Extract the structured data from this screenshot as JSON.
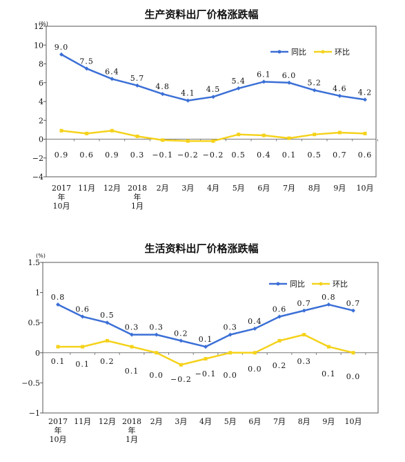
{
  "colors": {
    "yoy": "#3b6fd6",
    "mom": "#f5d21a",
    "axis": "#777777",
    "frame": "#555555"
  },
  "chart_data": [
    {
      "type": "line",
      "title": "生产资料出厂价格涨跌幅",
      "unit": "(%)",
      "categories": [
        [
          "2017",
          "年",
          "10月"
        ],
        [
          "11月"
        ],
        [
          "12月"
        ],
        [
          "2018",
          "年",
          "1月"
        ],
        [
          "2月"
        ],
        [
          "3月"
        ],
        [
          "4月"
        ],
        [
          "5月"
        ],
        [
          "6月"
        ],
        [
          "7月"
        ],
        [
          "8月"
        ],
        [
          "9月"
        ],
        [
          "10月"
        ]
      ],
      "yticks": [
        "12",
        "10",
        "8",
        "6",
        "4",
        "2",
        "0",
        "−2",
        "−4"
      ],
      "ylim": [
        -4,
        12
      ],
      "legend_position": "top-right",
      "series": [
        {
          "name": "同比",
          "values": [
            9.0,
            7.5,
            6.4,
            5.7,
            4.8,
            4.1,
            4.5,
            5.4,
            6.1,
            6.0,
            5.2,
            4.6,
            4.2
          ],
          "labels": [
            "9.0",
            "7.5",
            "6.4",
            "5.7",
            "4.8",
            "4.1",
            "4.5",
            "5.4",
            "6.1",
            "6.0",
            "5.2",
            "4.6",
            "4.2"
          ]
        },
        {
          "name": "环比",
          "values": [
            0.9,
            0.6,
            0.9,
            0.3,
            -0.1,
            -0.2,
            -0.2,
            0.5,
            0.4,
            0.1,
            0.5,
            0.7,
            0.6
          ],
          "labels": [
            "0.9",
            "0.6",
            "0.9",
            "0.3",
            "−0.1",
            "−0.2",
            "−0.2",
            "0.5",
            "0.4",
            "0.1",
            "0.5",
            "0.7",
            "0.6"
          ]
        }
      ]
    },
    {
      "type": "line",
      "title": "生活资料出厂价格涨跌幅",
      "unit": "(%)",
      "categories": [
        [
          "2017",
          "年",
          "10月"
        ],
        [
          "11月"
        ],
        [
          "12月"
        ],
        [
          "2018",
          "年",
          "1月"
        ],
        [
          "2月"
        ],
        [
          "3月"
        ],
        [
          "4月"
        ],
        [
          "5月"
        ],
        [
          "6月"
        ],
        [
          "7月"
        ],
        [
          "8月"
        ],
        [
          "9月"
        ],
        [
          "10月"
        ]
      ],
      "yticks": [
        "1.5",
        "1",
        "0.5",
        "0",
        "−0.5",
        "−1"
      ],
      "ylim": [
        -1,
        1.5
      ],
      "legend_position": "top-right",
      "series": [
        {
          "name": "同比",
          "values": [
            0.8,
            0.6,
            0.5,
            0.3,
            0.3,
            0.2,
            0.1,
            0.3,
            0.4,
            0.6,
            0.7,
            0.8,
            0.7
          ],
          "labels": [
            "0.8",
            "0.6",
            "0.5",
            "0.3",
            "0.3",
            "0.2",
            "0.1",
            "0.3",
            "0.4",
            "0.6",
            "0.7",
            "0.8",
            "0.7"
          ]
        },
        {
          "name": "环比",
          "values": [
            0.1,
            0.1,
            0.2,
            0.1,
            0.0,
            -0.2,
            -0.1,
            0.0,
            0.0,
            0.2,
            0.3,
            0.1,
            0.0
          ],
          "labels": [
            "0.1",
            "0.1",
            "0.2",
            "0.1",
            "0.0",
            "−0.2",
            "−0.1",
            "0.0",
            "0.0",
            "0.2",
            "0.3",
            "0.1",
            "0.0"
          ]
        }
      ]
    }
  ]
}
